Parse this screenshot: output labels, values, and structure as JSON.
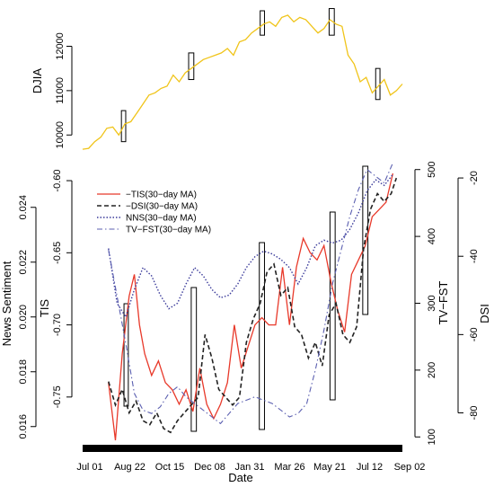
{
  "chart_data": [
    {
      "type": "line",
      "panel": "top",
      "ylabel": "DJIA",
      "ylim": [
        9600,
        12800
      ],
      "y_ticks": [
        "10000",
        "11000",
        "12000"
      ],
      "line_color": "#f0c419",
      "series": [
        {
          "x": [
            0,
            7,
            14,
            21,
            28,
            35,
            42,
            49,
            56,
            63,
            70,
            77,
            84,
            91,
            98,
            105,
            112,
            119,
            126,
            133,
            140,
            147,
            154,
            161,
            168,
            175,
            182,
            189,
            196,
            203,
            210,
            217,
            224,
            231,
            238,
            245,
            252,
            259,
            266,
            273,
            280,
            287,
            294,
            301,
            308,
            315,
            322,
            329,
            336,
            343,
            350,
            357,
            364,
            371
          ],
          "y": [
            9680,
            9700,
            9850,
            9950,
            10150,
            10180,
            10000,
            10250,
            10300,
            10500,
            10700,
            10900,
            10950,
            11050,
            11100,
            11350,
            11200,
            11400,
            11500,
            11600,
            11700,
            11750,
            11800,
            11850,
            11950,
            11800,
            12100,
            12150,
            12300,
            12400,
            12500,
            12550,
            12450,
            12650,
            12700,
            12550,
            12650,
            12600,
            12450,
            12300,
            12400,
            12600,
            12500,
            12450,
            11800,
            11600,
            11200,
            11300,
            10950,
            11100,
            11250,
            10900,
            11000,
            11150
          ]
        }
      ],
      "highlight_windows": [
        [
          45,
          50
        ],
        [
          123,
          129
        ],
        [
          206,
          211
        ],
        [
          286,
          292
        ],
        [
          340,
          345
        ]
      ]
    },
    {
      "type": "line",
      "panel": "bottom",
      "xlabel": "Date",
      "x_ticks": [
        "Jul 01",
        "Aug 22",
        "Oct 15",
        "Dec 08",
        "Jan 31",
        "Mar 26",
        "May 21",
        "Jul 12",
        "Sep 02"
      ],
      "axes": {
        "news_sentiment": {
          "label": "News Sentiment",
          "ylim": [
            0.0155,
            0.0255
          ],
          "ticks": [
            "0.016",
            "0.018",
            "0.020",
            "0.022",
            "0.024"
          ]
        },
        "tis": {
          "label": "TIS",
          "ylim": [
            -0.78,
            -0.59
          ],
          "ticks": [
            "-0.75",
            "-0.70",
            "-0.65",
            "-0.60"
          ]
        },
        "tv_fst": {
          "label": "TV−FST",
          "ylim": [
            95,
            505
          ],
          "ticks": [
            "100",
            "200",
            "300",
            "400",
            "500"
          ]
        },
        "dsi": {
          "label": "DSI",
          "ylim": [
            -87,
            -17
          ],
          "ticks": [
            "-80",
            "-60",
            "-40",
            "-20"
          ]
        }
      },
      "legend": [
        {
          "name": "−TIS(30−day MA)",
          "color": "#e8392a",
          "dash": "solid"
        },
        {
          "name": "−DSI(30−day MA)",
          "color": "#222222",
          "dash": "dashed"
        },
        {
          "name": "NNS(30−day MA)",
          "color": "#3a3a9a",
          "dash": "dotted"
        },
        {
          "name": "TV−FST(30−day MA)",
          "color": "#5b5fb0",
          "dash": "dashdot"
        }
      ],
      "highlight_windows": [
        [
          48,
          53
        ],
        [
          126,
          132
        ],
        [
          205,
          211
        ],
        [
          287,
          293
        ],
        [
          325,
          331
        ]
      ],
      "series": [
        {
          "name": "−TIS(30−day MA)",
          "axis": "tis",
          "x": [
            30,
            38,
            46,
            54,
            60,
            66,
            72,
            80,
            88,
            96,
            104,
            112,
            120,
            128,
            136,
            144,
            152,
            160,
            168,
            176,
            184,
            192,
            200,
            208,
            216,
            224,
            232,
            240,
            248,
            256,
            264,
            272,
            280,
            288,
            296,
            304,
            312,
            320,
            328,
            336,
            344,
            352,
            360
          ],
          "y": [
            -0.74,
            -0.78,
            -0.72,
            -0.68,
            -0.665,
            -0.7,
            -0.72,
            -0.735,
            -0.725,
            -0.74,
            -0.745,
            -0.755,
            -0.745,
            -0.76,
            -0.73,
            -0.755,
            -0.765,
            -0.755,
            -0.74,
            -0.7,
            -0.73,
            -0.715,
            -0.7,
            -0.695,
            -0.7,
            -0.7,
            -0.66,
            -0.7,
            -0.66,
            -0.64,
            -0.65,
            -0.655,
            -0.645,
            -0.67,
            -0.69,
            -0.705,
            -0.665,
            -0.655,
            -0.645,
            -0.625,
            -0.62,
            -0.615,
            -0.595
          ]
        },
        {
          "name": "−DSI(30−day MA)",
          "axis": "dsi",
          "x": [
            30,
            38,
            46,
            54,
            62,
            70,
            78,
            86,
            94,
            102,
            110,
            118,
            126,
            134,
            142,
            150,
            158,
            166,
            174,
            182,
            190,
            198,
            206,
            214,
            222,
            230,
            238,
            246,
            254,
            262,
            270,
            278,
            286,
            294,
            302,
            310,
            318,
            326,
            334,
            342,
            350,
            358,
            364
          ],
          "y": [
            -72,
            -78,
            -74,
            -80,
            -77,
            -82,
            -83,
            -80,
            -84,
            -85,
            -82,
            -80,
            -78,
            -76,
            -60,
            -66,
            -74,
            -76,
            -78,
            -76,
            -62,
            -56,
            -52,
            -44,
            -42,
            -50,
            -48,
            -58,
            -60,
            -66,
            -62,
            -68,
            -55,
            -52,
            -60,
            -62,
            -58,
            -38,
            -28,
            -24,
            -26,
            -24,
            -20
          ]
        },
        {
          "name": "NNS(30−day MA)",
          "axis": "news_sentiment",
          "x": [
            30,
            40,
            50,
            60,
            70,
            80,
            90,
            100,
            110,
            120,
            130,
            140,
            150,
            160,
            170,
            180,
            190,
            200,
            210,
            220,
            230,
            240,
            250,
            260,
            270,
            280,
            290,
            300,
            310,
            320,
            330,
            340,
            350,
            360
          ],
          "y": [
            0.0225,
            0.0205,
            0.02,
            0.021,
            0.0218,
            0.0215,
            0.0208,
            0.0203,
            0.0205,
            0.0212,
            0.0218,
            0.0215,
            0.021,
            0.0207,
            0.0208,
            0.0212,
            0.0218,
            0.0222,
            0.0224,
            0.0223,
            0.0221,
            0.0218,
            0.0212,
            0.0218,
            0.0226,
            0.0228,
            0.0227,
            0.0228,
            0.0232,
            0.0238,
            0.0246,
            0.025,
            0.0248,
            0.0252
          ]
        },
        {
          "name": "TV−FST(30−day MA)",
          "axis": "tv_fst",
          "x": [
            30,
            40,
            50,
            60,
            70,
            80,
            90,
            100,
            110,
            120,
            130,
            140,
            150,
            160,
            170,
            180,
            190,
            200,
            210,
            220,
            230,
            240,
            250,
            260,
            270,
            280,
            290,
            300,
            310,
            320,
            330,
            340,
            350,
            360
          ],
          "y": [
            380,
            310,
            240,
            165,
            140,
            135,
            145,
            165,
            175,
            160,
            150,
            140,
            130,
            120,
            135,
            150,
            155,
            160,
            155,
            150,
            140,
            130,
            135,
            150,
            200,
            260,
            330,
            380,
            430,
            470,
            500,
            490,
            480,
            510
          ]
        }
      ]
    }
  ]
}
